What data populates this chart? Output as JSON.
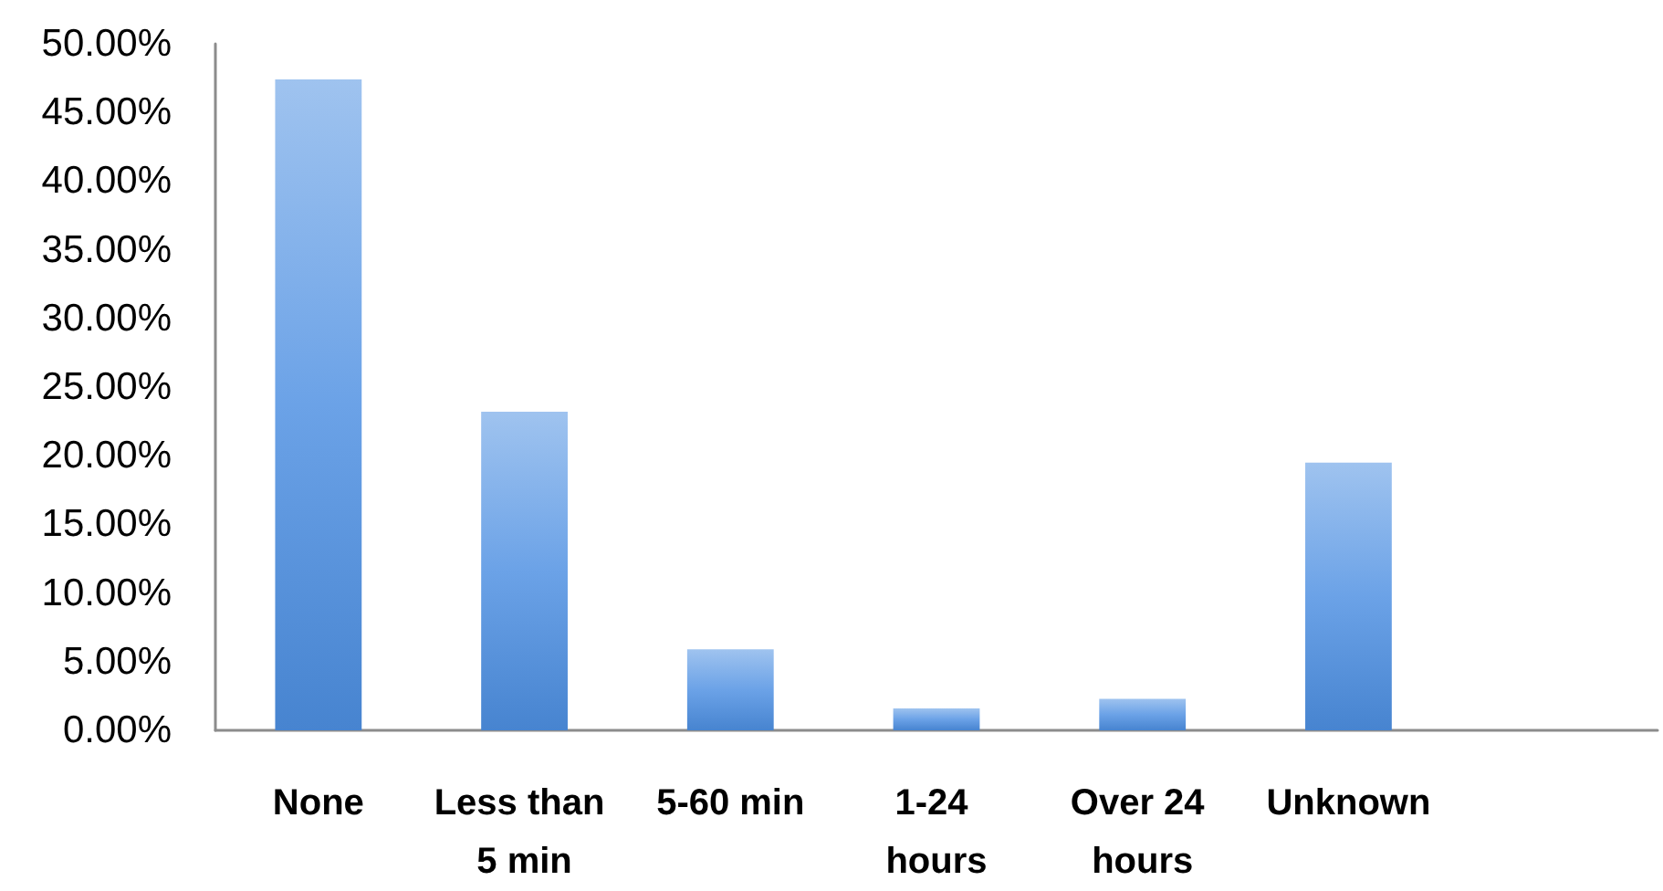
{
  "chart_data": {
    "type": "bar",
    "categories": [
      "None",
      "Less than 5 min",
      "5-60 min",
      "1-24 hours",
      "Over 24 hours",
      "Unknown",
      null
    ],
    "values": [
      47.4,
      23.2,
      5.9,
      1.6,
      2.3,
      19.5,
      null
    ],
    "color": "#6ba2e7",
    "ylim": [
      0,
      50
    ],
    "yticks": [
      {
        "value": 0,
        "label": "0.00%"
      },
      {
        "value": 5,
        "label": "5.00%"
      },
      {
        "value": 10,
        "label": "10.00%"
      },
      {
        "value": 15,
        "label": "15.00%"
      },
      {
        "value": 20,
        "label": "20.00%"
      },
      {
        "value": 25,
        "label": "25.00%"
      },
      {
        "value": 30,
        "label": "30.00%"
      },
      {
        "value": 35,
        "label": "35.00%"
      },
      {
        "value": 40,
        "label": "40.00%"
      },
      {
        "value": 45,
        "label": "45.00%"
      },
      {
        "value": 50,
        "label": "50.00%"
      }
    ]
  }
}
